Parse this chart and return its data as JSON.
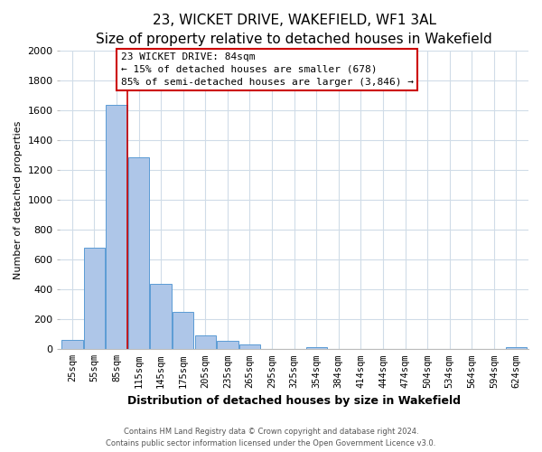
{
  "title": "23, WICKET DRIVE, WAKEFIELD, WF1 3AL",
  "subtitle": "Size of property relative to detached houses in Wakefield",
  "xlabel": "Distribution of detached houses by size in Wakefield",
  "ylabel": "Number of detached properties",
  "bar_labels": [
    "25sqm",
    "55sqm",
    "85sqm",
    "115sqm",
    "145sqm",
    "175sqm",
    "205sqm",
    "235sqm",
    "265sqm",
    "295sqm",
    "325sqm",
    "354sqm",
    "384sqm",
    "414sqm",
    "444sqm",
    "474sqm",
    "504sqm",
    "534sqm",
    "564sqm",
    "594sqm",
    "624sqm"
  ],
  "bar_heights": [
    65,
    680,
    1640,
    1285,
    440,
    250,
    90,
    55,
    30,
    0,
    0,
    15,
    0,
    0,
    0,
    0,
    0,
    0,
    0,
    0,
    15
  ],
  "bar_color": "#aec6e8",
  "bar_edge_color": "#5b9bd5",
  "vline_x_index": 2,
  "vline_color": "#cc0000",
  "ylim": [
    0,
    2000
  ],
  "yticks": [
    0,
    200,
    400,
    600,
    800,
    1000,
    1200,
    1400,
    1600,
    1800,
    2000
  ],
  "annotation_title": "23 WICKET DRIVE: 84sqm",
  "annotation_line1": "← 15% of detached houses are smaller (678)",
  "annotation_line2": "85% of semi-detached houses are larger (3,846) →",
  "annotation_box_color": "#ffffff",
  "annotation_box_edge": "#cc0000",
  "footer_line1": "Contains HM Land Registry data © Crown copyright and database right 2024.",
  "footer_line2": "Contains public sector information licensed under the Open Government Licence v3.0.",
  "background_color": "#ffffff",
  "grid_color": "#d0dce8",
  "title_fontsize": 11,
  "subtitle_fontsize": 9.5
}
